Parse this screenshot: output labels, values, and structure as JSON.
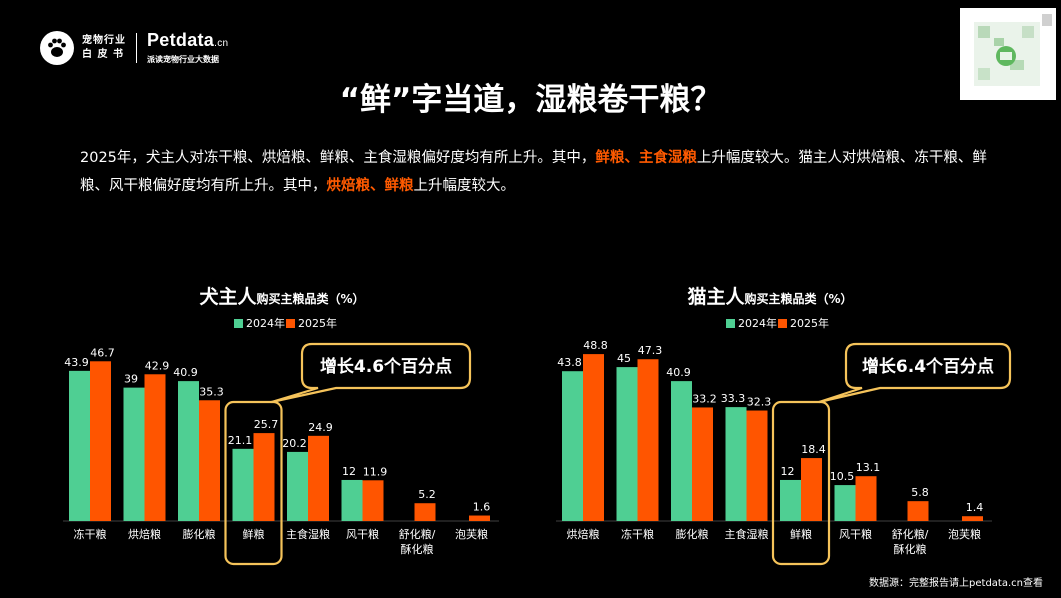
{
  "header": {
    "logo_icon": "paw-logo-icon",
    "logo_cn_line1": "宠物行业",
    "logo_cn_line2": "白 皮 书",
    "petdata_name": "Petdata",
    "petdata_domain": ".cn",
    "petdata_sub": "派读宠物行业大数据"
  },
  "title": "“鲜”字当道，湿粮卷干粮？",
  "description": {
    "p1_a": "2025年，犬主人对冻干粮、烘焙粮、鲜粮、主食湿粮偏好度均有所上升。其中，",
    "p1_hl": "鲜粮、主食湿粮",
    "p1_b": "上升幅度较大。猫主人对烘焙粮、冻干粮、鲜粮、风干粮偏好度均有所上升。其中，",
    "p1_hl2": "烘焙粮、鲜粮",
    "p1_c": "上升幅度较大。"
  },
  "colors": {
    "y2024": "#4fcf93",
    "y2025": "#ff5500",
    "highlight_box": "#f5c35a",
    "accent_text": "#ff5a00"
  },
  "source": "数据源：完整报告请上petdata.cn查看",
  "chart_data": [
    {
      "type": "bar",
      "title_main": "犬主人",
      "title_sub": "购买主粮品类（%）",
      "legend": [
        "2024年",
        "2025年"
      ],
      "categories": [
        "冻干粮",
        "烘焙粮",
        "膨化粮",
        "鲜粮",
        "主食湿粮",
        "风干粮",
        "舒化粮/酥化粮",
        "泡芙粮"
      ],
      "series": [
        {
          "name": "2024年",
          "values": [
            43.9,
            39,
            40.9,
            21.1,
            20.2,
            12,
            null,
            null
          ]
        },
        {
          "name": "2025年",
          "values": [
            46.7,
            42.9,
            35.3,
            25.7,
            24.9,
            11.9,
            5.2,
            1.6
          ]
        }
      ],
      "ylim": [
        0,
        50
      ],
      "highlight_category": "鲜粮",
      "callout": "增长4.6个百分点"
    },
    {
      "type": "bar",
      "title_main": "猫主人",
      "title_sub": "购买主粮品类（%）",
      "legend": [
        "2024年",
        "2025年"
      ],
      "categories": [
        "烘焙粮",
        "冻干粮",
        "膨化粮",
        "主食湿粮",
        "鲜粮",
        "风干粮",
        "舒化粮/酥化粮",
        "泡芙粮"
      ],
      "series": [
        {
          "name": "2024年",
          "values": [
            43.8,
            45,
            40.9,
            33.3,
            12,
            10.5,
            null,
            null
          ]
        },
        {
          "name": "2025年",
          "values": [
            48.8,
            47.3,
            33.2,
            32.3,
            18.4,
            13.1,
            5.8,
            1.4
          ]
        }
      ],
      "ylim": [
        0,
        50
      ],
      "highlight_category": "鲜粮",
      "callout": "增长6.4个百分点"
    }
  ]
}
